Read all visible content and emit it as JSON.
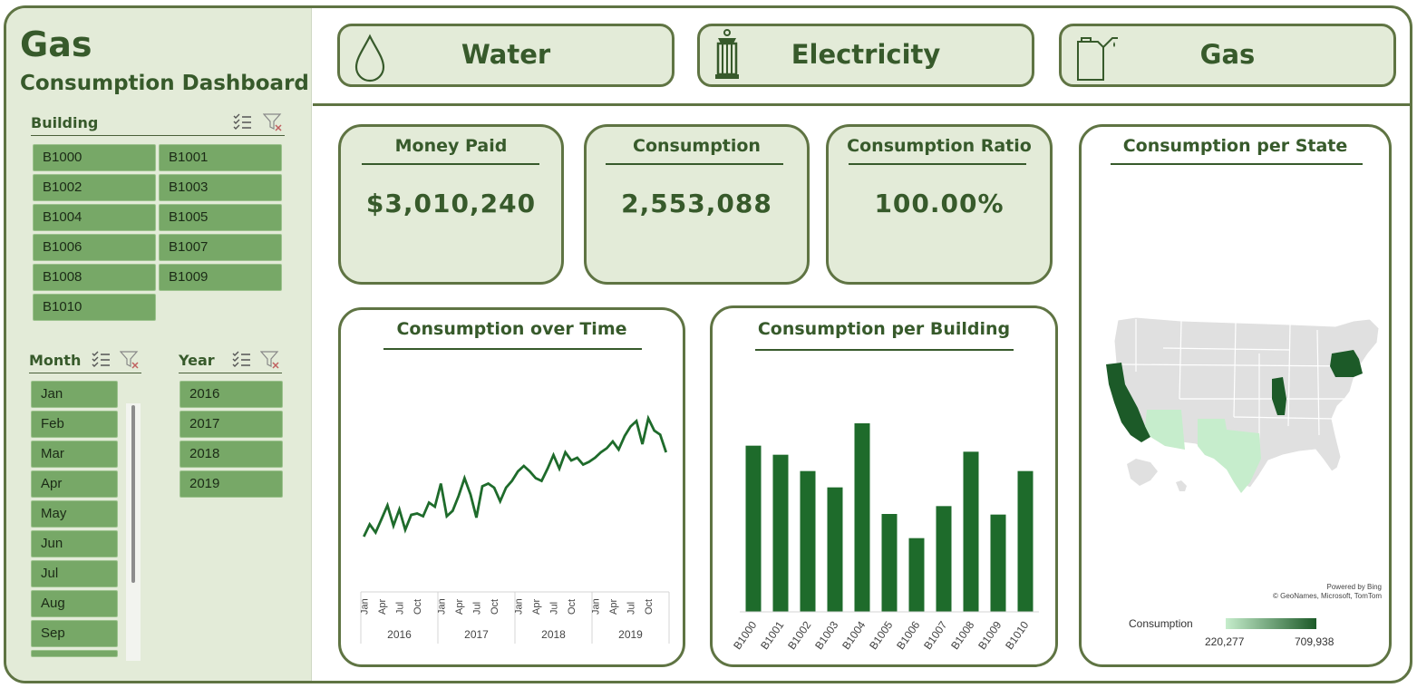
{
  "sidebar": {
    "title": "Gas",
    "subtitle": "Consumption Dashboard",
    "building_slicer": {
      "title": "Building",
      "items": [
        "B1000",
        "B1001",
        "B1002",
        "B1003",
        "B1004",
        "B1005",
        "B1006",
        "B1007",
        "B1008",
        "B1009",
        "B1010"
      ]
    },
    "month_slicer": {
      "title": "Month",
      "items": [
        "Jan",
        "Feb",
        "Mar",
        "Apr",
        "May",
        "Jun",
        "Jul",
        "Aug",
        "Sep"
      ]
    },
    "year_slicer": {
      "title": "Year",
      "items": [
        "2016",
        "2017",
        "2018",
        "2019"
      ]
    },
    "icons": [
      "multi-select-icon",
      "clear-filter-icon"
    ]
  },
  "tabs": [
    {
      "label": "Water",
      "icon": "water-drop-icon"
    },
    {
      "label": "Electricity",
      "icon": "lantern-icon"
    },
    {
      "label": "Gas",
      "icon": "gas-can-icon"
    }
  ],
  "kpis": {
    "money_paid": {
      "title": "Money Paid",
      "value": "$3,010,240"
    },
    "consumption": {
      "title": "Consumption",
      "value": "2,553,088"
    },
    "ratio": {
      "title": "Consumption Ratio",
      "value": "100.00%"
    }
  },
  "colors": {
    "frame": "#5f7443",
    "panel": "#e3ebd8",
    "slicer_button": "#77a867",
    "line": "#1e6b2b",
    "bar": "#1e6b2b",
    "map_low": "#c6edcc",
    "map_high": "#1c5a28",
    "map_nodata": "#e0e0e0"
  },
  "chart_data": [
    {
      "type": "line",
      "title": "Consumption over Time",
      "years": [
        "2016",
        "2017",
        "2018",
        "2019"
      ],
      "month_ticks": [
        "Jan",
        "Apr",
        "Jul",
        "Oct"
      ],
      "values": [
        40,
        49,
        43,
        53,
        63,
        48,
        60,
        45,
        56,
        57,
        55,
        65,
        62,
        79,
        55,
        59,
        70,
        83,
        71,
        54,
        77,
        79,
        76,
        66,
        76,
        81,
        88,
        92,
        88,
        83,
        81,
        90,
        100,
        90,
        102,
        96,
        98,
        93,
        95,
        98,
        102,
        105,
        110,
        104,
        114,
        121,
        125,
        108,
        127,
        118,
        115,
        102
      ],
      "ylim": [
        0,
        160
      ],
      "xlabel": "",
      "ylabel": ""
    },
    {
      "type": "bar",
      "title": "Consumption per Building",
      "categories": [
        "B1000",
        "B1001",
        "B1002",
        "B1003",
        "B1004",
        "B1005",
        "B1006",
        "B1007",
        "B1008",
        "B1009",
        "B1010"
      ],
      "values": [
        275000,
        260000,
        233000,
        206000,
        312000,
        162000,
        122000,
        175000,
        265000,
        161000,
        233000
      ],
      "ylim": [
        0,
        330000
      ],
      "xlabel": "",
      "ylabel": ""
    },
    {
      "type": "map",
      "title": "Consumption per State",
      "highlighted_states": [
        {
          "state": "California",
          "level": "high"
        },
        {
          "state": "Illinois",
          "level": "high"
        },
        {
          "state": "New York",
          "level": "high"
        },
        {
          "state": "Arizona",
          "level": "low"
        },
        {
          "state": "Texas",
          "level": "low"
        }
      ],
      "legend": {
        "label": "Consumption",
        "min": "220,277",
        "max": "709,938"
      },
      "attribution": [
        "Powered by Bing",
        "© GeoNames, Microsoft, TomTom"
      ]
    }
  ]
}
